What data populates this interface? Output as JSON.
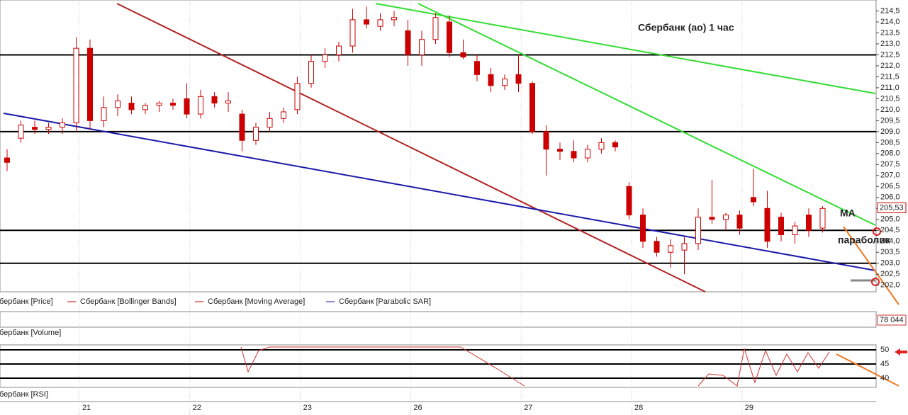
{
  "chart_data": {
    "type": "candlestick",
    "title": "Сбербанк (ао)   1 час",
    "annotations": [
      "MA",
      "параболик"
    ],
    "legend": [
      "Сбербанк [Price]",
      "Сбербанк [Bollinger Bands]",
      "Сбербанк [Moving Average]",
      "Сбербанк [Parabolic SAR]"
    ],
    "volume_label": "Сбербанк [Volume]",
    "volume_last": "78 044",
    "rsi_label": "Сбербанк [RSI]",
    "rsi_ticks": [
      50,
      45,
      40
    ],
    "last_price": {
      "value": 205.53,
      "label": "205,53"
    },
    "dates": [
      "21",
      "22",
      "23",
      "26",
      "27",
      "28",
      "29"
    ],
    "ylim": [
      201.7,
      215.0
    ],
    "yticks": [
      {
        "value": 202.0,
        "label": "202,0"
      },
      {
        "value": 202.5,
        "label": "202,5"
      },
      {
        "value": 203.0,
        "label": "203,0"
      },
      {
        "value": 203.5,
        "label": "203,5"
      },
      {
        "value": 204.0,
        "label": "204,0"
      },
      {
        "value": 204.5,
        "label": "204,5"
      },
      {
        "value": 205.0,
        "label": "205,0"
      },
      {
        "value": 205.5,
        "label": "205,5"
      },
      {
        "value": 206.0,
        "label": "206,0"
      },
      {
        "value": 206.5,
        "label": "206,5"
      },
      {
        "value": 207.0,
        "label": "207,0"
      },
      {
        "value": 207.5,
        "label": "207,5"
      },
      {
        "value": 208.0,
        "label": "208,0"
      },
      {
        "value": 208.5,
        "label": "208,5"
      },
      {
        "value": 209.0,
        "label": "209,0"
      },
      {
        "value": 209.5,
        "label": "209,5"
      },
      {
        "value": 210.0,
        "label": "210,0"
      },
      {
        "value": 210.5,
        "label": "210,5"
      },
      {
        "value": 211.0,
        "label": "211,0"
      },
      {
        "value": 211.5,
        "label": "211,5"
      },
      {
        "value": 212.0,
        "label": "212,0"
      },
      {
        "value": 212.5,
        "label": "212,5"
      },
      {
        "value": 213.0,
        "label": "213,0"
      },
      {
        "value": 213.5,
        "label": "213,5"
      },
      {
        "value": 214.0,
        "label": "214,0"
      },
      {
        "value": 214.5,
        "label": "214,5"
      }
    ],
    "levels": [
      212.5,
      209.0,
      204.5,
      203.0
    ],
    "color": "#cc0000",
    "candles": [
      [
        207.8,
        208.2,
        207.2,
        207.6
      ],
      [
        208.7,
        209.5,
        208.5,
        209.3
      ],
      [
        209.2,
        209.5,
        208.9,
        209.1
      ],
      [
        209.1,
        209.4,
        208.9,
        209.2
      ],
      [
        209.2,
        209.6,
        208.9,
        209.4
      ],
      [
        209.4,
        213.3,
        209.0,
        212.8
      ],
      [
        212.8,
        213.2,
        209.1,
        209.5
      ],
      [
        209.5,
        210.6,
        209.2,
        210.1
      ],
      [
        210.1,
        210.7,
        209.7,
        210.4
      ],
      [
        210.3,
        210.6,
        209.8,
        210.0
      ],
      [
        210.0,
        210.3,
        209.8,
        210.2
      ],
      [
        210.2,
        210.4,
        209.9,
        210.3
      ],
      [
        210.3,
        210.5,
        210.0,
        210.2
      ],
      [
        210.5,
        211.2,
        209.6,
        209.8
      ],
      [
        209.8,
        210.9,
        209.6,
        210.6
      ],
      [
        210.6,
        210.8,
        210.1,
        210.3
      ],
      [
        210.3,
        210.8,
        209.9,
        210.4
      ],
      [
        209.8,
        210.0,
        208.1,
        208.6
      ],
      [
        208.6,
        209.4,
        208.4,
        209.2
      ],
      [
        209.2,
        209.9,
        209.0,
        209.6
      ],
      [
        209.6,
        210.1,
        209.4,
        209.9
      ],
      [
        210.0,
        211.5,
        209.8,
        211.2
      ],
      [
        211.2,
        212.5,
        211.0,
        212.2
      ],
      [
        212.2,
        212.8,
        211.9,
        212.5
      ],
      [
        212.5,
        213.1,
        212.2,
        212.9
      ],
      [
        212.9,
        214.6,
        212.6,
        214.1
      ],
      [
        214.1,
        214.7,
        213.7,
        213.9
      ],
      [
        213.8,
        214.4,
        213.6,
        214.1
      ],
      [
        214.1,
        214.5,
        213.8,
        214.2
      ],
      [
        213.6,
        214.1,
        212.0,
        212.5
      ],
      [
        212.5,
        213.6,
        212.0,
        213.2
      ],
      [
        213.2,
        214.4,
        213.0,
        214.2
      ],
      [
        214.0,
        214.3,
        212.4,
        212.6
      ],
      [
        212.6,
        213.2,
        212.3,
        212.4
      ],
      [
        212.2,
        212.5,
        211.3,
        211.6
      ],
      [
        211.6,
        211.9,
        210.8,
        211.1
      ],
      [
        211.1,
        211.6,
        210.9,
        211.4
      ],
      [
        211.6,
        212.5,
        210.8,
        211.2
      ],
      [
        211.2,
        211.3,
        208.9,
        209.0
      ],
      [
        209.0,
        209.3,
        207.0,
        208.2
      ],
      [
        208.2,
        208.5,
        207.7,
        208.1
      ],
      [
        208.1,
        208.6,
        207.6,
        207.8
      ],
      [
        207.8,
        208.4,
        207.6,
        208.2
      ],
      [
        208.2,
        208.7,
        208.0,
        208.5
      ],
      [
        208.5,
        208.6,
        208.1,
        208.3
      ],
      [
        206.5,
        206.7,
        205.0,
        205.2
      ],
      [
        205.2,
        205.5,
        203.7,
        204.0
      ],
      [
        204.0,
        204.2,
        203.3,
        203.5
      ],
      [
        203.5,
        204.1,
        202.8,
        203.8
      ],
      [
        203.6,
        204.2,
        202.5,
        203.9
      ],
      [
        203.9,
        205.5,
        203.6,
        205.1
      ],
      [
        205.1,
        206.8,
        204.8,
        205.0
      ],
      [
        205.0,
        205.3,
        204.5,
        205.2
      ],
      [
        205.2,
        205.4,
        204.3,
        204.6
      ],
      [
        206.0,
        207.3,
        205.6,
        205.8
      ],
      [
        205.5,
        206.3,
        203.7,
        204.0
      ],
      [
        205.1,
        205.3,
        204.0,
        204.3
      ],
      [
        204.3,
        204.9,
        203.9,
        204.7
      ],
      [
        205.2,
        205.5,
        204.2,
        204.5
      ],
      [
        204.6,
        205.6,
        204.4,
        205.5
      ]
    ]
  }
}
